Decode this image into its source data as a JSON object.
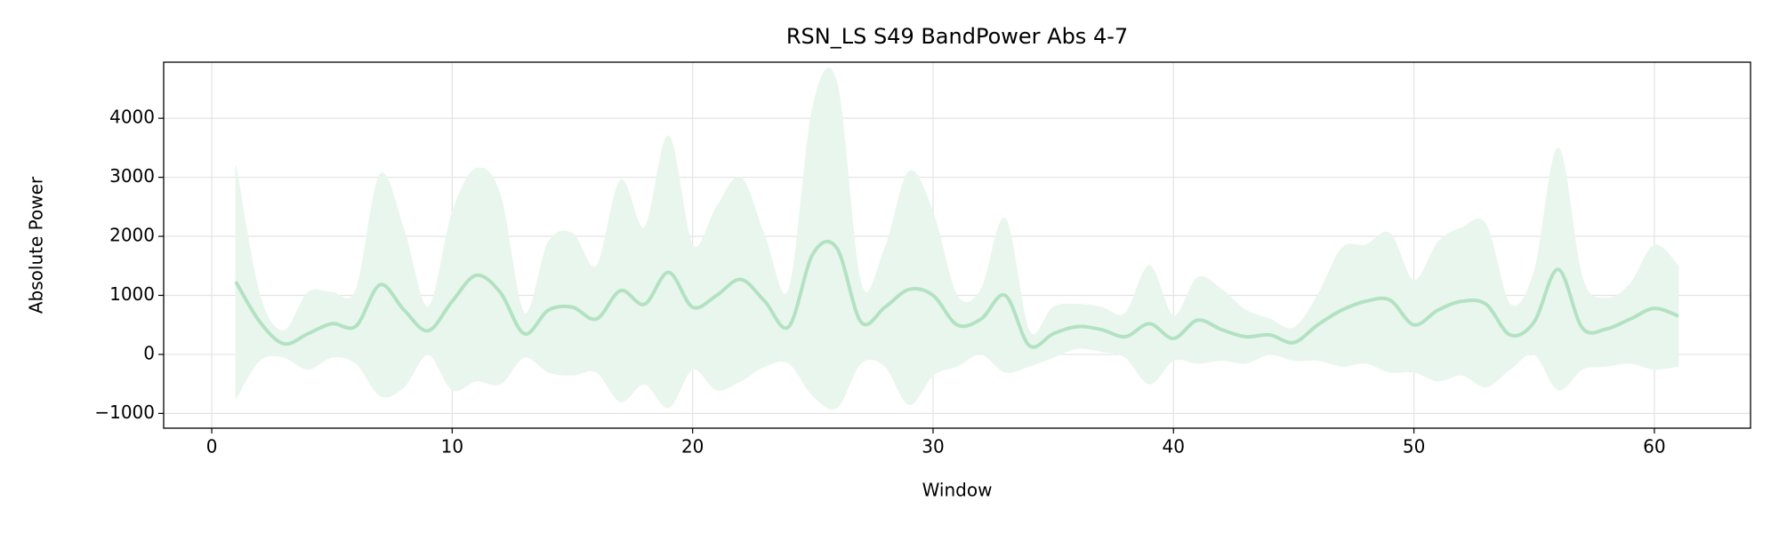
{
  "chart_data": {
    "type": "line",
    "title": "RSN_LS S49 BandPower Abs 4-7",
    "x_label": "Window",
    "y_label": "Absolute Power",
    "x": [
      1,
      2,
      3,
      4,
      5,
      6,
      7,
      8,
      9,
      10,
      11,
      12,
      13,
      14,
      15,
      16,
      17,
      18,
      19,
      20,
      21,
      22,
      23,
      24,
      25,
      26,
      27,
      28,
      29,
      30,
      31,
      32,
      33,
      34,
      35,
      36,
      37,
      38,
      39,
      40,
      41,
      42,
      43,
      44,
      45,
      46,
      47,
      48,
      49,
      50,
      51,
      52,
      53,
      54,
      55,
      56,
      57,
      58,
      59,
      60,
      61
    ],
    "values": [
      1230,
      550,
      180,
      350,
      520,
      480,
      1180,
      750,
      400,
      900,
      1340,
      1050,
      350,
      750,
      800,
      600,
      1080,
      850,
      1390,
      800,
      1000,
      1270,
      900,
      470,
      1700,
      1800,
      550,
      800,
      1100,
      1000,
      500,
      600,
      1000,
      150,
      350,
      470,
      420,
      300,
      520,
      270,
      580,
      420,
      300,
      330,
      200,
      500,
      750,
      900,
      920,
      500,
      750,
      900,
      850,
      330,
      550,
      1440,
      450,
      430,
      600,
      780,
      650
    ],
    "upper": [
      3200,
      1000,
      400,
      1050,
      1050,
      1100,
      3050,
      2100,
      800,
      2400,
      3150,
      2700,
      700,
      1900,
      2050,
      1500,
      2950,
      2150,
      3700,
      1850,
      2500,
      3000,
      2000,
      1100,
      4200,
      4600,
      1200,
      1800,
      3100,
      2400,
      1000,
      1100,
      2300,
      400,
      800,
      850,
      800,
      700,
      1500,
      650,
      1300,
      1100,
      750,
      600,
      450,
      1000,
      1800,
      1850,
      2050,
      1250,
      1900,
      2150,
      2200,
      850,
      1400,
      3500,
      1300,
      950,
      1200,
      1850,
      1500
    ],
    "lower": [
      -750,
      -100,
      -50,
      -250,
      -50,
      -150,
      -700,
      -550,
      0,
      -600,
      -450,
      -500,
      -50,
      -300,
      -350,
      -300,
      -800,
      -500,
      -900,
      -250,
      -600,
      -450,
      -200,
      -150,
      -700,
      -900,
      -150,
      -200,
      -850,
      -350,
      -200,
      0,
      -300,
      -200,
      -50,
      100,
      50,
      -50,
      -500,
      -100,
      -150,
      -100,
      -150,
      0,
      -100,
      -100,
      -200,
      -150,
      -300,
      -300,
      -450,
      -350,
      -550,
      -250,
      0,
      -600,
      -250,
      -200,
      -150,
      -250,
      -200
    ],
    "color": "#b3e2c3",
    "band_color": "#e9f6ed",
    "xlim": [
      -2,
      64
    ],
    "ylim": [
      -1250,
      4950
    ],
    "xticks": [
      0,
      10,
      20,
      30,
      40,
      50,
      60
    ],
    "yticks": [
      {
        "value": -1000,
        "label": "−1000"
      },
      0,
      1000,
      2000,
      3000,
      4000
    ],
    "grid": true
  }
}
